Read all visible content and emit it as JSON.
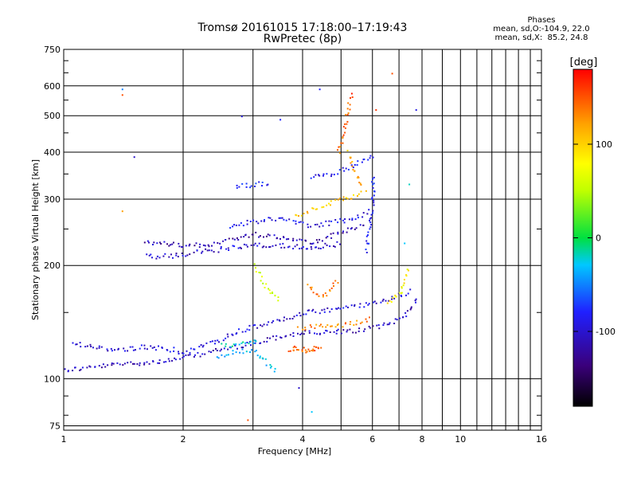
{
  "title": "Tromsø 20161015 17:18:00–17:19:43",
  "subtitle": "RwPretec (8p)",
  "phases": {
    "label": "Phases",
    "line_o": "mean, sd,O:-104.9, 22.0",
    "line_x": "mean, sd,X:  85.2, 24.8"
  },
  "chart_data": {
    "type": "scatter",
    "xlabel": "Frequency [MHz]",
    "ylabel": "Stationary phase Virtual Height [km]",
    "xscale": "log",
    "yscale": "log",
    "xlim": [
      1,
      16
    ],
    "ylim": [
      73,
      750
    ],
    "x_ticks": [
      1,
      2,
      4,
      6,
      8,
      10,
      16
    ],
    "x_minor_ticks": [
      3,
      5,
      7,
      9,
      11,
      12,
      13,
      14,
      15
    ],
    "y_ticks": [
      75,
      100,
      200,
      300,
      400,
      500,
      600,
      750
    ],
    "grid": true,
    "colorbar": {
      "label": "[deg]",
      "ticks": [
        100,
        0,
        -100
      ],
      "range": [
        -180,
        180
      ]
    },
    "traces": [
      {
        "name": "",
        "points": [
          [
            1.0,
            106
          ],
          [
            1.1,
            107
          ],
          [
            1.2,
            108
          ],
          [
            1.4,
            110
          ],
          [
            1.6,
            111
          ],
          [
            1.8,
            112
          ],
          [
            2.0,
            114
          ],
          [
            2.3,
            118
          ],
          [
            2.7,
            122
          ],
          [
            3.0,
            125
          ],
          [
            3.5,
            130
          ],
          [
            4.0,
            133
          ],
          [
            4.5,
            133
          ],
          [
            5.0,
            134
          ],
          [
            5.5,
            135
          ],
          [
            6.0,
            137
          ],
          [
            6.5,
            140
          ],
          [
            7.0,
            145
          ],
          [
            7.5,
            155
          ],
          [
            7.8,
            165
          ]
        ],
        "phase": -125
      },
      {
        "name": "",
        "points": [
          [
            1.05,
            126
          ],
          [
            1.2,
            121
          ],
          [
            1.4,
            120
          ],
          [
            1.6,
            122
          ],
          [
            1.8,
            121
          ],
          [
            2.0,
            118
          ],
          [
            2.2,
            122
          ],
          [
            2.5,
            128
          ],
          [
            2.8,
            135
          ],
          [
            3.2,
            140
          ],
          [
            3.6,
            145
          ],
          [
            4.0,
            150
          ],
          [
            4.5,
            152
          ],
          [
            5.0,
            155
          ],
          [
            5.5,
            157
          ],
          [
            6.0,
            160
          ],
          [
            6.5,
            162
          ],
          [
            7.0,
            168
          ],
          [
            7.5,
            172
          ]
        ],
        "phase": -115
      },
      {
        "name": "",
        "points": [
          [
            1.6,
            232
          ],
          [
            1.8,
            230
          ],
          [
            2.0,
            226
          ],
          [
            2.3,
            228
          ],
          [
            2.6,
            235
          ],
          [
            3.0,
            243
          ],
          [
            3.4,
            240
          ],
          [
            3.8,
            236
          ],
          [
            4.2,
            232
          ],
          [
            4.6,
            238
          ],
          [
            5.0,
            246
          ],
          [
            5.4,
            252
          ],
          [
            5.8,
            258
          ]
        ],
        "phase": -130
      },
      {
        "name": "",
        "points": [
          [
            1.6,
            212
          ],
          [
            1.9,
            213
          ],
          [
            2.2,
            218
          ],
          [
            2.5,
            222
          ],
          [
            2.8,
            226
          ],
          [
            3.2,
            228
          ],
          [
            3.6,
            226
          ],
          [
            4.0,
            224
          ],
          [
            4.5,
            226
          ],
          [
            5.0,
            230
          ]
        ],
        "phase": -120
      },
      {
        "name": "",
        "points": [
          [
            2.6,
            256
          ],
          [
            3.0,
            262
          ],
          [
            3.4,
            268
          ],
          [
            3.8,
            262
          ],
          [
            4.2,
            256
          ],
          [
            4.8,
            262
          ],
          [
            5.4,
            268
          ],
          [
            5.9,
            282
          ]
        ],
        "phase": -110
      },
      {
        "name": "",
        "points": [
          [
            2.7,
            327
          ],
          [
            2.9,
            328
          ],
          [
            3.1,
            330
          ],
          [
            3.3,
            328
          ]
        ],
        "phase": -95
      },
      {
        "name": "",
        "points": [
          [
            3.8,
            270
          ],
          [
            4.0,
            278
          ],
          [
            4.3,
            285
          ],
          [
            4.6,
            292
          ],
          [
            5.0,
            300
          ],
          [
            5.4,
            308
          ],
          [
            5.8,
            316
          ]
        ],
        "phase": 105
      },
      {
        "name": "",
        "points": [
          [
            4.2,
            345
          ],
          [
            4.6,
            350
          ],
          [
            5.0,
            360
          ],
          [
            5.4,
            372
          ],
          [
            5.8,
            385
          ],
          [
            6.0,
            395
          ]
        ],
        "phase": -105
      },
      {
        "name": "",
        "points": [
          [
            3.9,
            137
          ],
          [
            4.2,
            138
          ],
          [
            4.6,
            138
          ],
          [
            5.0,
            140
          ],
          [
            5.5,
            142
          ],
          [
            6.0,
            145
          ]
        ],
        "phase": 130
      },
      {
        "name": "",
        "points": [
          [
            4.0,
            118
          ],
          [
            4.2,
            120
          ],
          [
            4.4,
            122
          ],
          [
            3.7,
            118
          ],
          [
            3.9,
            124
          ]
        ],
        "phase": 145
      },
      {
        "name": "",
        "points": [
          [
            3.0,
            200
          ],
          [
            3.1,
            190
          ],
          [
            3.2,
            180
          ],
          [
            3.3,
            172
          ],
          [
            3.5,
            160
          ]
        ],
        "phase": 60
      },
      {
        "name": "",
        "points": [
          [
            4.9,
            400
          ],
          [
            5.0,
            430
          ],
          [
            5.1,
            470
          ],
          [
            5.2,
            520
          ],
          [
            5.3,
            570
          ]
        ],
        "phase": 140
      },
      {
        "name": "",
        "points": [
          [
            5.2,
            400
          ],
          [
            5.3,
            380
          ],
          [
            5.4,
            360
          ],
          [
            5.5,
            340
          ],
          [
            5.6,
            320
          ]
        ],
        "phase": 115
      },
      {
        "name": "",
        "points": [
          [
            5.8,
            220
          ],
          [
            5.8,
            240
          ],
          [
            5.9,
            260
          ],
          [
            6.0,
            300
          ],
          [
            6.0,
            350
          ]
        ],
        "phase": -100
      },
      {
        "name": "",
        "points": [
          [
            6.5,
            160
          ],
          [
            6.8,
            165
          ],
          [
            7.0,
            170
          ],
          [
            7.2,
            180
          ],
          [
            7.4,
            200
          ]
        ],
        "phase": 80
      },
      {
        "name": "",
        "points": [
          [
            4.1,
            180
          ],
          [
            4.3,
            170
          ],
          [
            4.5,
            165
          ],
          [
            4.7,
            175
          ],
          [
            4.9,
            185
          ]
        ],
        "phase": 135
      },
      {
        "name": "",
        "points": [
          [
            3.4,
            105
          ],
          [
            3.0,
            120
          ],
          [
            2.6,
            118
          ],
          [
            2.4,
            113
          ]
        ],
        "phase": -40
      },
      {
        "name": "",
        "points": [
          [
            2.5,
            123
          ],
          [
            2.7,
            124
          ],
          [
            2.9,
            126
          ],
          [
            3.1,
            127
          ]
        ],
        "phase": -20
      }
    ],
    "isolated_points": [
      [
        1.4,
        590,
        -60
      ],
      [
        1.4,
        570,
        150
      ],
      [
        1.4,
        280,
        120
      ],
      [
        1.5,
        390,
        -120
      ],
      [
        2.8,
        500,
        -110
      ],
      [
        3.5,
        490,
        -100
      ],
      [
        6.7,
        650,
        150
      ],
      [
        7.7,
        520,
        -110
      ],
      [
        6.1,
        520,
        160
      ],
      [
        3.9,
        95,
        -120
      ],
      [
        4.2,
        82,
        -30
      ],
      [
        2.9,
        78,
        150
      ],
      [
        7.2,
        230,
        -30
      ],
      [
        7.4,
        330,
        -20
      ],
      [
        4.4,
        590,
        -100
      ],
      [
        5.3,
        575,
        170
      ]
    ]
  }
}
